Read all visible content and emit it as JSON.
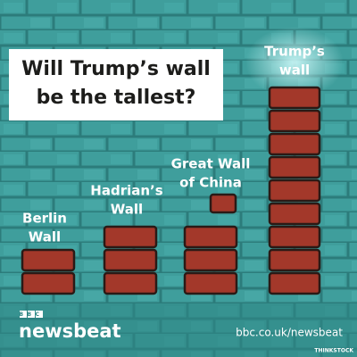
{
  "title": {
    "lines": [
      "Will Trump’s wall",
      "be the tallest?"
    ]
  },
  "walls": [
    {
      "lines": [
        "Berlin",
        "Wall"
      ]
    },
    {
      "lines": [
        "Hadrian’s",
        "Wall"
      ]
    },
    {
      "lines": [
        "Great Wall",
        "of China"
      ]
    },
    {
      "lines": [
        "Trump’s",
        "wall"
      ]
    }
  ],
  "footer": {
    "brand": "BBC",
    "name": "newsbeat",
    "url": "bbc.co.uk/newsbeat",
    "credit": "THINKSTOCK"
  }
}
